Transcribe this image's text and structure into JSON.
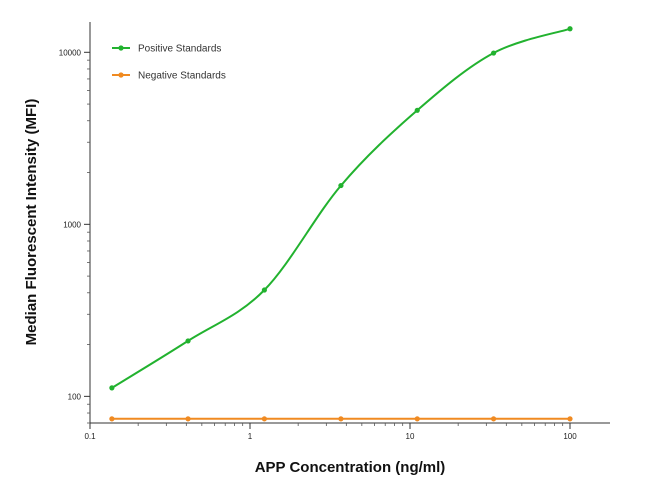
{
  "chart_data": {
    "type": "scatter",
    "title": "",
    "xlabel": "APP Concentration (ng/ml)",
    "ylabel": "Median  Fluorescent Intensity  (MFI)",
    "x_scale": "log",
    "y_scale": "log",
    "xlim": [
      0.1,
      100
    ],
    "ylim": [
      70,
      15000
    ],
    "x_ticks": [
      {
        "value": 0.1,
        "label": "0.1"
      },
      {
        "value": 1,
        "label": "1"
      },
      {
        "value": 10,
        "label": "10"
      },
      {
        "value": 100,
        "label": "100"
      }
    ],
    "y_ticks": [
      {
        "value": 100,
        "label": "100"
      },
      {
        "value": 1000,
        "label": "1000"
      },
      {
        "value": 10000,
        "label": "10000"
      }
    ],
    "grid": false,
    "legend_position": "top-left",
    "series": [
      {
        "name": "Positive Standards",
        "color": "#22b22f",
        "marker": "circle",
        "fit_line": true,
        "x": [
          0.137,
          0.41,
          1.23,
          3.7,
          11.1,
          33.3,
          100
        ],
        "y": [
          112,
          210,
          415,
          1680,
          4600,
          9900,
          13700
        ]
      },
      {
        "name": "Negative Standards",
        "color": "#f08a21",
        "marker": "circle",
        "fit_line": true,
        "x": [
          0.137,
          0.41,
          1.23,
          3.7,
          11.1,
          33.3,
          100
        ],
        "y": [
          74,
          74,
          74,
          74,
          74,
          74,
          74
        ]
      }
    ]
  }
}
